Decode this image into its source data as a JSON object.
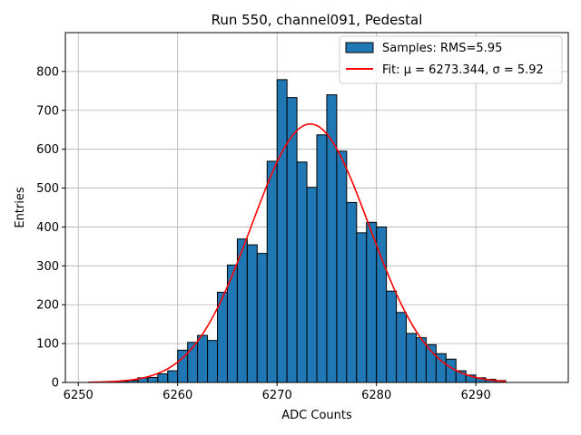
{
  "chart_data": {
    "type": "bar",
    "title": "Run 550, channel091, Pedestal",
    "xlabel": "ADC Counts",
    "ylabel": "Entries",
    "xlim": [
      6248.7,
      6299.3
    ],
    "ylim": [
      0,
      900
    ],
    "xticks": [
      6250,
      6260,
      6270,
      6280,
      6290
    ],
    "yticks": [
      0,
      100,
      200,
      300,
      400,
      500,
      600,
      700,
      800
    ],
    "grid": true,
    "legend_position": "top-right",
    "bin_start": 6251,
    "bin_width": 1,
    "counts": [
      0,
      1,
      2,
      3,
      5,
      12,
      13,
      22,
      30,
      83,
      103,
      121,
      108,
      232,
      302,
      369,
      354,
      332,
      569,
      779,
      733,
      567,
      502,
      637,
      740,
      595,
      463,
      385,
      412,
      400,
      235,
      180,
      126,
      115,
      97,
      74,
      60,
      30,
      19,
      12,
      8,
      5
    ],
    "histogram": {
      "name": "Samples: RMS=5.95",
      "color": "#1f77b4",
      "edge_color": "#000000"
    },
    "fit": {
      "name": "Fit: μ = 6273.344, σ = 5.92",
      "color": "#ff0000",
      "mu": 6273.344,
      "sigma": 5.92,
      "amplitude": 665,
      "x_range": [
        6251,
        6293
      ]
    }
  }
}
